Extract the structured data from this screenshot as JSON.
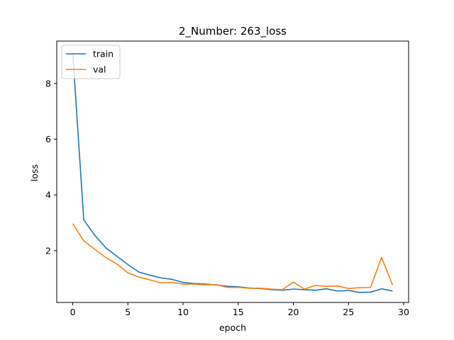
{
  "chart_data": {
    "type": "line",
    "title": "2_Number: 263_loss",
    "xlabel": "epoch",
    "ylabel": "loss",
    "xlim": [
      -1.45,
      30.45
    ],
    "ylim": [
      0.14,
      9.52
    ],
    "xticks": [
      0,
      5,
      10,
      15,
      20,
      25,
      30
    ],
    "yticks": [
      2,
      4,
      6,
      8
    ],
    "grid": false,
    "legend_position": "top-left",
    "x": [
      0,
      1,
      2,
      3,
      4,
      5,
      6,
      7,
      8,
      9,
      10,
      11,
      12,
      13,
      14,
      15,
      16,
      17,
      18,
      19,
      20,
      21,
      22,
      23,
      24,
      25,
      26,
      27,
      28,
      29
    ],
    "series": [
      {
        "name": "train",
        "color": "#1f77b4",
        "values": [
          9.1,
          3.1,
          2.55,
          2.1,
          1.8,
          1.5,
          1.23,
          1.12,
          1.02,
          0.97,
          0.86,
          0.82,
          0.8,
          0.77,
          0.72,
          0.7,
          0.66,
          0.64,
          0.6,
          0.58,
          0.62,
          0.6,
          0.58,
          0.63,
          0.55,
          0.57,
          0.5,
          0.51,
          0.63,
          0.55
        ]
      },
      {
        "name": "val",
        "color": "#ff7f0e",
        "values": [
          2.97,
          2.35,
          2.05,
          1.75,
          1.52,
          1.2,
          1.05,
          0.95,
          0.84,
          0.86,
          0.8,
          0.8,
          0.77,
          0.78,
          0.68,
          0.68,
          0.65,
          0.65,
          0.62,
          0.6,
          0.87,
          0.62,
          0.75,
          0.72,
          0.73,
          0.64,
          0.67,
          0.68,
          1.76,
          0.76
        ]
      }
    ]
  }
}
